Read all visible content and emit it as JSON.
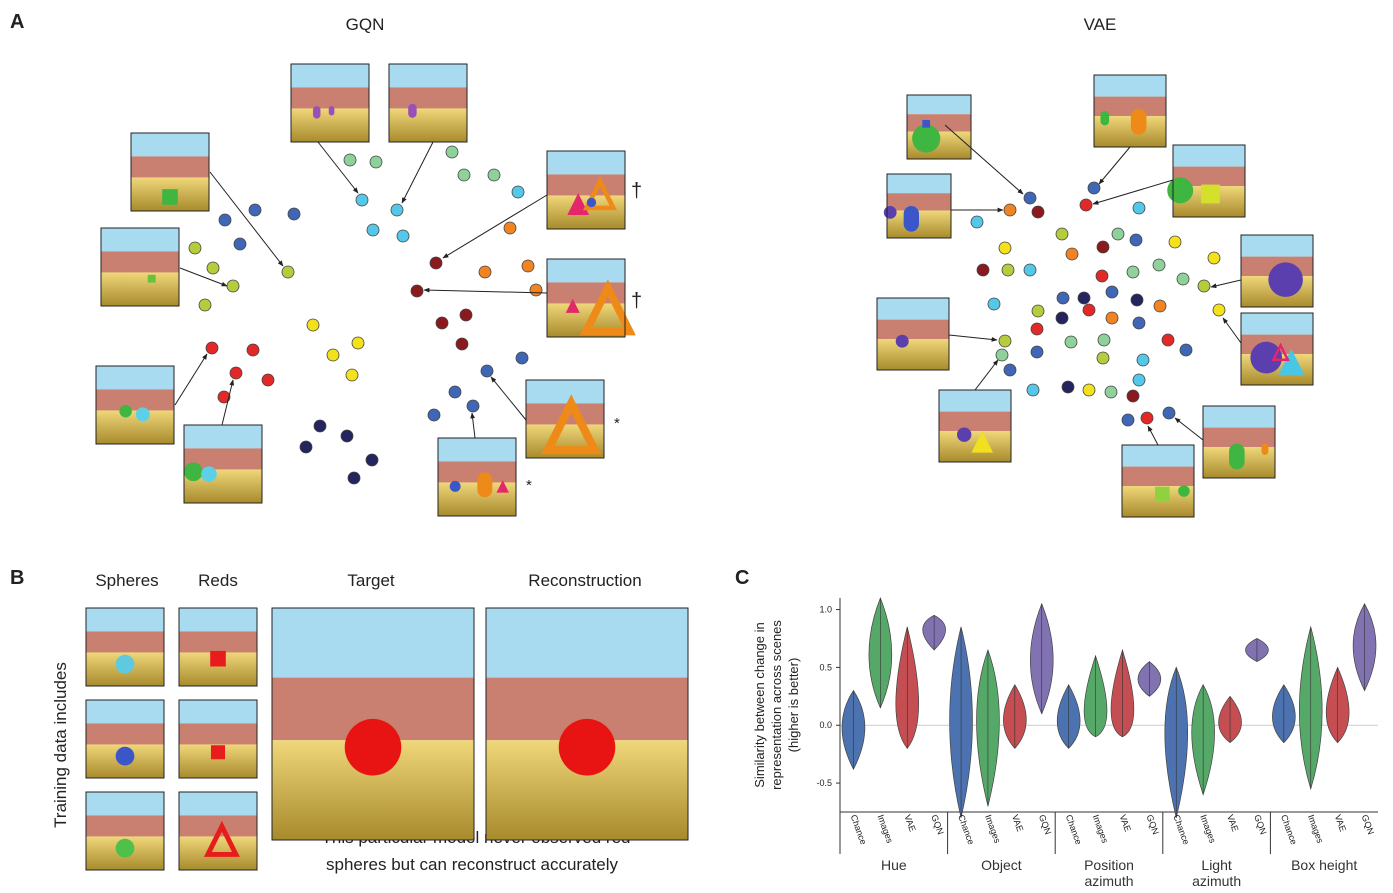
{
  "panel_a": {
    "label": "A",
    "gqn_title": "GQN",
    "vae_title": "VAE",
    "markers": [
      "†",
      "†",
      "*",
      "*"
    ]
  },
  "panel_b": {
    "label": "B",
    "side_label": "Training data includes",
    "columns": [
      "Spheres",
      "Reds",
      "Target",
      "Reconstruction"
    ],
    "caption": [
      "This particular model never observed red",
      "spheres but can reconstruct accurately"
    ]
  },
  "chart_data": {
    "type": "violin",
    "panel_label": "C",
    "y_label": [
      "Similarity between change in",
      "representation across scenes",
      "(higher is better)"
    ],
    "categories": [
      "Hue",
      "Object",
      "Position azimuth",
      "Light azimuth",
      "Box height"
    ],
    "series": [
      {
        "name": "Chance",
        "color": "#4c72b0",
        "values": [
          0,
          0.05,
          0,
          0.02,
          0.05
        ],
        "min": [
          -0.38,
          -0.8,
          -0.2,
          -0.8,
          -0.15
        ],
        "max": [
          0.3,
          0.85,
          0.35,
          0.5,
          0.35
        ]
      },
      {
        "name": "Images",
        "color": "#55a868",
        "values": [
          0.6,
          0.1,
          0,
          0,
          0.1
        ],
        "min": [
          0.15,
          -0.7,
          -0.1,
          -0.6,
          -0.55
        ],
        "max": [
          1.1,
          0.65,
          0.6,
          0.35,
          0.85
        ]
      },
      {
        "name": "VAE",
        "color": "#c44e52",
        "values": [
          0.05,
          0.02,
          0,
          0,
          0.05
        ],
        "min": [
          -0.2,
          -0.2,
          -0.1,
          -0.15,
          -0.15
        ],
        "max": [
          0.85,
          0.35,
          0.65,
          0.25,
          0.5
        ]
      },
      {
        "name": "GQN",
        "color": "#8172b2",
        "values": [
          0.85,
          0.55,
          0.4,
          0.65,
          0.7
        ],
        "min": [
          0.65,
          0.1,
          0.25,
          0.55,
          0.3
        ],
        "max": [
          0.95,
          1.05,
          0.55,
          0.75,
          1.05
        ]
      }
    ],
    "ylim": [
      -0.75,
      1.1
    ],
    "yticks": [
      -0.5,
      {
        "value": 0,
        "label": "0.0"
      },
      0.5,
      {
        "value": 1,
        "label": "1.0"
      }
    ],
    "zero_line": true
  }
}
